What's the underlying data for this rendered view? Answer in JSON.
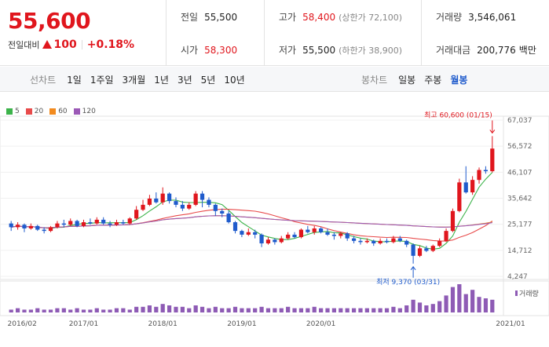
{
  "quote": {
    "price": "55,600",
    "change_label": "전일대비",
    "change_value": "100",
    "change_pct": "+0.18%"
  },
  "info": {
    "prev_close_label": "전일",
    "prev_close": "55,500",
    "open_label": "시가",
    "open": "58,300",
    "high_label": "고가",
    "high": "58,400",
    "upper_limit": "(상한가 72,100)",
    "low_label": "저가",
    "low": "55,500",
    "lower_limit": "(하한가 38,900)",
    "volume_label": "거래량",
    "volume": "3,546,061",
    "amount_label": "거래대금",
    "amount": "200,776",
    "amount_unit": "백만"
  },
  "toolbar": {
    "line_label": "선차트",
    "line_periods": [
      "1일",
      "1주일",
      "3개월",
      "1년",
      "3년",
      "5년",
      "10년"
    ],
    "candle_label": "봉차트",
    "candle_periods": [
      "일봉",
      "주봉",
      "월봉"
    ],
    "active_candle": "월봉"
  },
  "legend": [
    {
      "name": "5",
      "color": "#3cb34a"
    },
    {
      "name": "20",
      "color": "#e84a4a"
    },
    {
      "name": "60",
      "color": "#f28a1e"
    },
    {
      "name": "120",
      "color": "#9b59b6"
    }
  ],
  "chart_data": {
    "type": "candlestick",
    "y_ticks": [
      "67,037",
      "56,572",
      "46,107",
      "35,642",
      "25,177",
      "14,712",
      "4,247"
    ],
    "ylim": [
      4247,
      67037
    ],
    "x_ticks": [
      "2016/02",
      "2017/01",
      "2018/01",
      "2019/01",
      "2020/01",
      "2021/01"
    ],
    "max_label": "최고 60,600 (01/15)",
    "min_label": "최저 9,370 (03/31)",
    "volume_label": "거래량",
    "up_color": "#e0161d",
    "down_color": "#1f5bcc",
    "candles": [
      [
        25500,
        24000,
        26500,
        22500
      ],
      [
        24000,
        25000,
        26000,
        23000
      ],
      [
        25000,
        23500,
        25500,
        22000
      ],
      [
        23500,
        24500,
        25500,
        23000
      ],
      [
        24500,
        23000,
        25000,
        22500
      ],
      [
        23000,
        22500,
        24000,
        21500
      ],
      [
        22500,
        24000,
        24500,
        22000
      ],
      [
        24000,
        25500,
        26500,
        23500
      ],
      [
        25500,
        25000,
        27000,
        24000
      ],
      [
        25000,
        26500,
        27500,
        24500
      ],
      [
        26500,
        24500,
        27000,
        24000
      ],
      [
        24500,
        26000,
        27000,
        24000
      ],
      [
        26000,
        25500,
        27500,
        25000
      ],
      [
        25500,
        27000,
        28000,
        25000
      ],
      [
        27000,
        25500,
        28000,
        25000
      ],
      [
        25500,
        25000,
        26500,
        24000
      ],
      [
        25000,
        26000,
        27000,
        24500
      ],
      [
        26000,
        25500,
        27000,
        25000
      ],
      [
        25500,
        27500,
        28000,
        25000
      ],
      [
        27500,
        31000,
        32500,
        27000
      ],
      [
        31000,
        33000,
        35000,
        30500
      ],
      [
        33000,
        35500,
        37000,
        32500
      ],
      [
        35500,
        34000,
        38000,
        33500
      ],
      [
        34000,
        37500,
        40000,
        33000
      ],
      [
        37500,
        34500,
        38000,
        33500
      ],
      [
        34500,
        33000,
        36000,
        32000
      ],
      [
        33000,
        31500,
        34500,
        30500
      ],
      [
        31500,
        33000,
        34000,
        31000
      ],
      [
        33000,
        37500,
        38500,
        32500
      ],
      [
        37500,
        35000,
        38500,
        32000
      ],
      [
        35000,
        33000,
        36000,
        32000
      ],
      [
        33000,
        30500,
        33500,
        28500
      ],
      [
        30500,
        29500,
        31500,
        28000
      ],
      [
        29500,
        26000,
        30500,
        25500
      ],
      [
        26000,
        22500,
        26500,
        21500
      ],
      [
        22500,
        21000,
        23000,
        20000
      ],
      [
        21000,
        22000,
        23500,
        20500
      ],
      [
        22000,
        21000,
        23000,
        19500
      ],
      [
        21000,
        17500,
        21500,
        16000
      ],
      [
        17500,
        19000,
        20000,
        17000
      ],
      [
        19000,
        18000,
        19500,
        17000
      ],
      [
        18000,
        19500,
        20500,
        17500
      ],
      [
        19500,
        21000,
        22000,
        19000
      ],
      [
        21000,
        20000,
        22000,
        19500
      ],
      [
        20000,
        23000,
        23500,
        19500
      ],
      [
        23000,
        22000,
        24500,
        21500
      ],
      [
        22000,
        23500,
        24500,
        21000
      ],
      [
        23500,
        22000,
        24000,
        21500
      ],
      [
        22000,
        21000,
        23500,
        20500
      ],
      [
        21000,
        20500,
        22000,
        19000
      ],
      [
        20500,
        21500,
        22000,
        19500
      ],
      [
        21500,
        19500,
        22000,
        18500
      ],
      [
        19500,
        18500,
        20500,
        17500
      ],
      [
        18500,
        18000,
        19500,
        17000
      ],
      [
        18000,
        18500,
        19500,
        17500
      ],
      [
        18500,
        17500,
        19000,
        16500
      ],
      [
        17500,
        18500,
        19500,
        17000
      ],
      [
        18500,
        18000,
        19500,
        17500
      ],
      [
        18000,
        19500,
        20500,
        17500
      ],
      [
        19500,
        18500,
        20500,
        18000
      ],
      [
        18500,
        17000,
        19000,
        16000
      ],
      [
        17000,
        12500,
        17500,
        9370
      ],
      [
        12500,
        15500,
        16500,
        12000
      ],
      [
        15500,
        14500,
        16500,
        14000
      ],
      [
        14500,
        16500,
        17000,
        14000
      ],
      [
        16500,
        18500,
        19500,
        16000
      ],
      [
        18500,
        22500,
        23500,
        18000
      ],
      [
        22500,
        30500,
        31500,
        22000
      ],
      [
        30500,
        42000,
        43500,
        30000
      ],
      [
        42000,
        38000,
        48500,
        37500
      ],
      [
        38000,
        43000,
        44500,
        37000
      ],
      [
        43000,
        47000,
        48000,
        41500
      ],
      [
        47000,
        46500,
        48500,
        45500
      ],
      [
        46500,
        55600,
        60600,
        46000
      ]
    ],
    "volumes": [
      2,
      3,
      2,
      2,
      3,
      2,
      2,
      3,
      3,
      2,
      3,
      2,
      2,
      3,
      2,
      2,
      3,
      3,
      2,
      4,
      4,
      5,
      4,
      6,
      5,
      4,
      4,
      3,
      5,
      4,
      3,
      4,
      3,
      3,
      4,
      3,
      3,
      3,
      4,
      3,
      3,
      3,
      4,
      3,
      3,
      3,
      4,
      3,
      3,
      3,
      3,
      3,
      3,
      3,
      3,
      3,
      3,
      3,
      4,
      3,
      5,
      9,
      7,
      5,
      6,
      8,
      12,
      18,
      20,
      13,
      16,
      11,
      10,
      9
    ]
  }
}
